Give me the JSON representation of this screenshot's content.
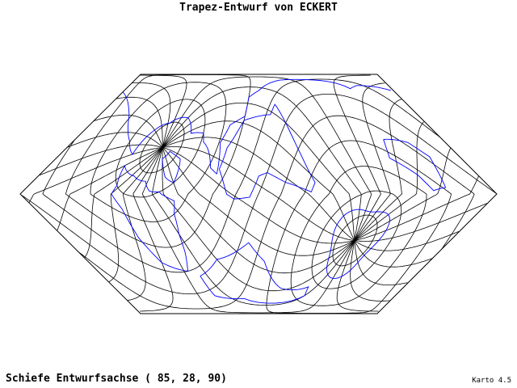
{
  "header": {
    "title": "Trapez-Entwurf von ECKERT"
  },
  "footer": {
    "projection_axis": "Schiefe Entwurfsachse ( 85, 28, 90)",
    "version": "Karto 4.5"
  }
}
